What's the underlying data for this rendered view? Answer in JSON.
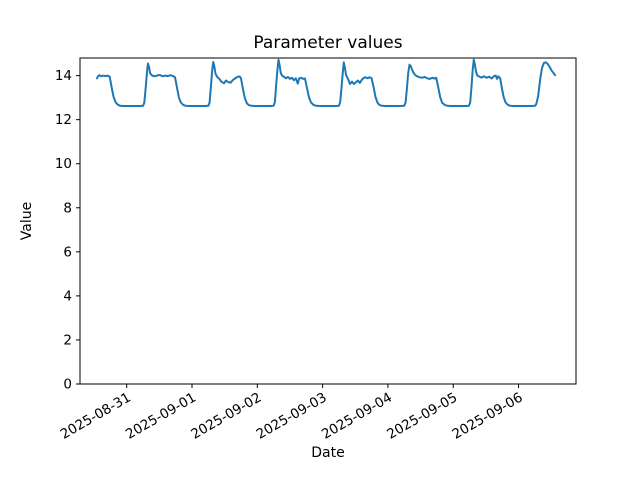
{
  "chart_data": {
    "type": "line",
    "title": "Parameter values",
    "xlabel": "Date",
    "ylabel": "Value",
    "grid": false,
    "legend": "none",
    "background": "#ffffff",
    "axis_color": "#000000",
    "y_axis": {
      "ticks": [
        0,
        2,
        4,
        6,
        8,
        10,
        12,
        14
      ],
      "ylim": [
        0,
        14.8
      ]
    },
    "x_axis": {
      "day0_date": "2025-08-30",
      "xlim_days": [
        0.285,
        7.88
      ],
      "ticks": [
        {
          "day": 1,
          "label": "2025-08-31"
        },
        {
          "day": 2,
          "label": "2025-09-01"
        },
        {
          "day": 3,
          "label": "2025-09-02"
        },
        {
          "day": 4,
          "label": "2025-09-03"
        },
        {
          "day": 5,
          "label": "2025-09-04"
        },
        {
          "day": 6,
          "label": "2025-09-05"
        },
        {
          "day": 7,
          "label": "2025-09-06"
        }
      ]
    },
    "series": [
      {
        "name": "parameter",
        "color": "#1f77b4",
        "line_width": 2,
        "points": [
          [
            0.545,
            13.88
          ],
          [
            0.56,
            13.97
          ],
          [
            0.58,
            14.02
          ],
          [
            0.61,
            13.97
          ],
          [
            0.64,
            14.0
          ],
          [
            0.68,
            13.98
          ],
          [
            0.71,
            14.0
          ],
          [
            0.74,
            13.95
          ],
          [
            0.77,
            13.45
          ],
          [
            0.8,
            13.03
          ],
          [
            0.83,
            12.8
          ],
          [
            0.86,
            12.69
          ],
          [
            0.9,
            12.63
          ],
          [
            0.95,
            12.62
          ],
          [
            1.2,
            12.62
          ],
          [
            1.25,
            12.63
          ],
          [
            1.27,
            12.76
          ],
          [
            1.29,
            13.4
          ],
          [
            1.31,
            14.1
          ],
          [
            1.325,
            14.55
          ],
          [
            1.34,
            14.42
          ],
          [
            1.36,
            14.1
          ],
          [
            1.39,
            14.0
          ],
          [
            1.43,
            13.97
          ],
          [
            1.47,
            14.01
          ],
          [
            1.51,
            14.03
          ],
          [
            1.55,
            13.97
          ],
          [
            1.59,
            14.0
          ],
          [
            1.63,
            13.98
          ],
          [
            1.67,
            14.02
          ],
          [
            1.71,
            13.98
          ],
          [
            1.74,
            13.93
          ],
          [
            1.77,
            13.45
          ],
          [
            1.8,
            13.0
          ],
          [
            1.83,
            12.78
          ],
          [
            1.86,
            12.68
          ],
          [
            1.9,
            12.63
          ],
          [
            1.95,
            12.62
          ],
          [
            2.2,
            12.62
          ],
          [
            2.25,
            12.63
          ],
          [
            2.27,
            12.78
          ],
          [
            2.29,
            13.5
          ],
          [
            2.31,
            14.25
          ],
          [
            2.325,
            14.62
          ],
          [
            2.34,
            14.45
          ],
          [
            2.36,
            14.08
          ],
          [
            2.39,
            13.93
          ],
          [
            2.42,
            13.85
          ],
          [
            2.45,
            13.72
          ],
          [
            2.49,
            13.65
          ],
          [
            2.52,
            13.78
          ],
          [
            2.55,
            13.71
          ],
          [
            2.59,
            13.68
          ],
          [
            2.63,
            13.81
          ],
          [
            2.67,
            13.89
          ],
          [
            2.7,
            13.95
          ],
          [
            2.73,
            13.96
          ],
          [
            2.75,
            13.88
          ],
          [
            2.78,
            13.4
          ],
          [
            2.81,
            12.97
          ],
          [
            2.84,
            12.74
          ],
          [
            2.87,
            12.66
          ],
          [
            2.91,
            12.63
          ],
          [
            2.96,
            12.62
          ],
          [
            3.2,
            12.62
          ],
          [
            3.25,
            12.63
          ],
          [
            3.27,
            12.8
          ],
          [
            3.29,
            13.6
          ],
          [
            3.31,
            14.35
          ],
          [
            3.325,
            14.72
          ],
          [
            3.34,
            14.5
          ],
          [
            3.36,
            14.12
          ],
          [
            3.38,
            14.0
          ],
          [
            3.41,
            13.94
          ],
          [
            3.44,
            13.88
          ],
          [
            3.47,
            13.94
          ],
          [
            3.5,
            13.85
          ],
          [
            3.53,
            13.9
          ],
          [
            3.56,
            13.79
          ],
          [
            3.59,
            13.88
          ],
          [
            3.62,
            13.64
          ],
          [
            3.64,
            13.87
          ],
          [
            3.67,
            13.9
          ],
          [
            3.7,
            13.85
          ],
          [
            3.73,
            13.87
          ],
          [
            3.76,
            13.45
          ],
          [
            3.79,
            13.03
          ],
          [
            3.82,
            12.79
          ],
          [
            3.86,
            12.67
          ],
          [
            3.9,
            12.63
          ],
          [
            3.95,
            12.62
          ],
          [
            4.2,
            12.62
          ],
          [
            4.25,
            12.63
          ],
          [
            4.27,
            12.8
          ],
          [
            4.29,
            13.5
          ],
          [
            4.31,
            14.2
          ],
          [
            4.325,
            14.6
          ],
          [
            4.34,
            14.38
          ],
          [
            4.36,
            14.02
          ],
          [
            4.39,
            13.84
          ],
          [
            4.42,
            13.62
          ],
          [
            4.45,
            13.73
          ],
          [
            4.48,
            13.62
          ],
          [
            4.51,
            13.7
          ],
          [
            4.54,
            13.78
          ],
          [
            4.57,
            13.67
          ],
          [
            4.61,
            13.85
          ],
          [
            4.65,
            13.93
          ],
          [
            4.69,
            13.88
          ],
          [
            4.72,
            13.93
          ],
          [
            4.75,
            13.88
          ],
          [
            4.78,
            13.48
          ],
          [
            4.81,
            13.03
          ],
          [
            4.84,
            12.77
          ],
          [
            4.87,
            12.67
          ],
          [
            4.91,
            12.63
          ],
          [
            4.96,
            12.62
          ],
          [
            5.2,
            12.62
          ],
          [
            5.25,
            12.63
          ],
          [
            5.27,
            12.78
          ],
          [
            5.29,
            13.4
          ],
          [
            5.31,
            14.12
          ],
          [
            5.33,
            14.5
          ],
          [
            5.35,
            14.43
          ],
          [
            5.38,
            14.2
          ],
          [
            5.41,
            14.05
          ],
          [
            5.44,
            13.98
          ],
          [
            5.48,
            13.93
          ],
          [
            5.52,
            13.9
          ],
          [
            5.56,
            13.94
          ],
          [
            5.6,
            13.88
          ],
          [
            5.64,
            13.85
          ],
          [
            5.68,
            13.9
          ],
          [
            5.71,
            13.87
          ],
          [
            5.74,
            13.9
          ],
          [
            5.77,
            13.48
          ],
          [
            5.8,
            13.02
          ],
          [
            5.83,
            12.77
          ],
          [
            5.87,
            12.67
          ],
          [
            5.91,
            12.63
          ],
          [
            5.96,
            12.62
          ],
          [
            6.2,
            12.62
          ],
          [
            6.24,
            12.63
          ],
          [
            6.26,
            12.78
          ],
          [
            6.28,
            13.5
          ],
          [
            6.3,
            14.32
          ],
          [
            6.315,
            14.72
          ],
          [
            6.33,
            14.52
          ],
          [
            6.35,
            14.15
          ],
          [
            6.37,
            14.0
          ],
          [
            6.4,
            13.96
          ],
          [
            6.43,
            13.91
          ],
          [
            6.47,
            13.97
          ],
          [
            6.51,
            13.9
          ],
          [
            6.55,
            13.95
          ],
          [
            6.59,
            13.87
          ],
          [
            6.62,
            13.97
          ],
          [
            6.65,
            14.0
          ],
          [
            6.67,
            13.85
          ],
          [
            6.69,
            13.97
          ],
          [
            6.72,
            13.88
          ],
          [
            6.74,
            13.5
          ],
          [
            6.77,
            13.05
          ],
          [
            6.8,
            12.79
          ],
          [
            6.83,
            12.69
          ],
          [
            6.87,
            12.63
          ],
          [
            6.92,
            12.62
          ],
          [
            7.2,
            12.62
          ],
          [
            7.25,
            12.63
          ],
          [
            7.27,
            12.7
          ],
          [
            7.3,
            13.05
          ],
          [
            7.33,
            13.8
          ],
          [
            7.36,
            14.35
          ],
          [
            7.39,
            14.58
          ],
          [
            7.42,
            14.6
          ],
          [
            7.45,
            14.52
          ],
          [
            7.48,
            14.38
          ],
          [
            7.51,
            14.22
          ],
          [
            7.54,
            14.1
          ],
          [
            7.56,
            14.02
          ]
        ]
      }
    ]
  }
}
